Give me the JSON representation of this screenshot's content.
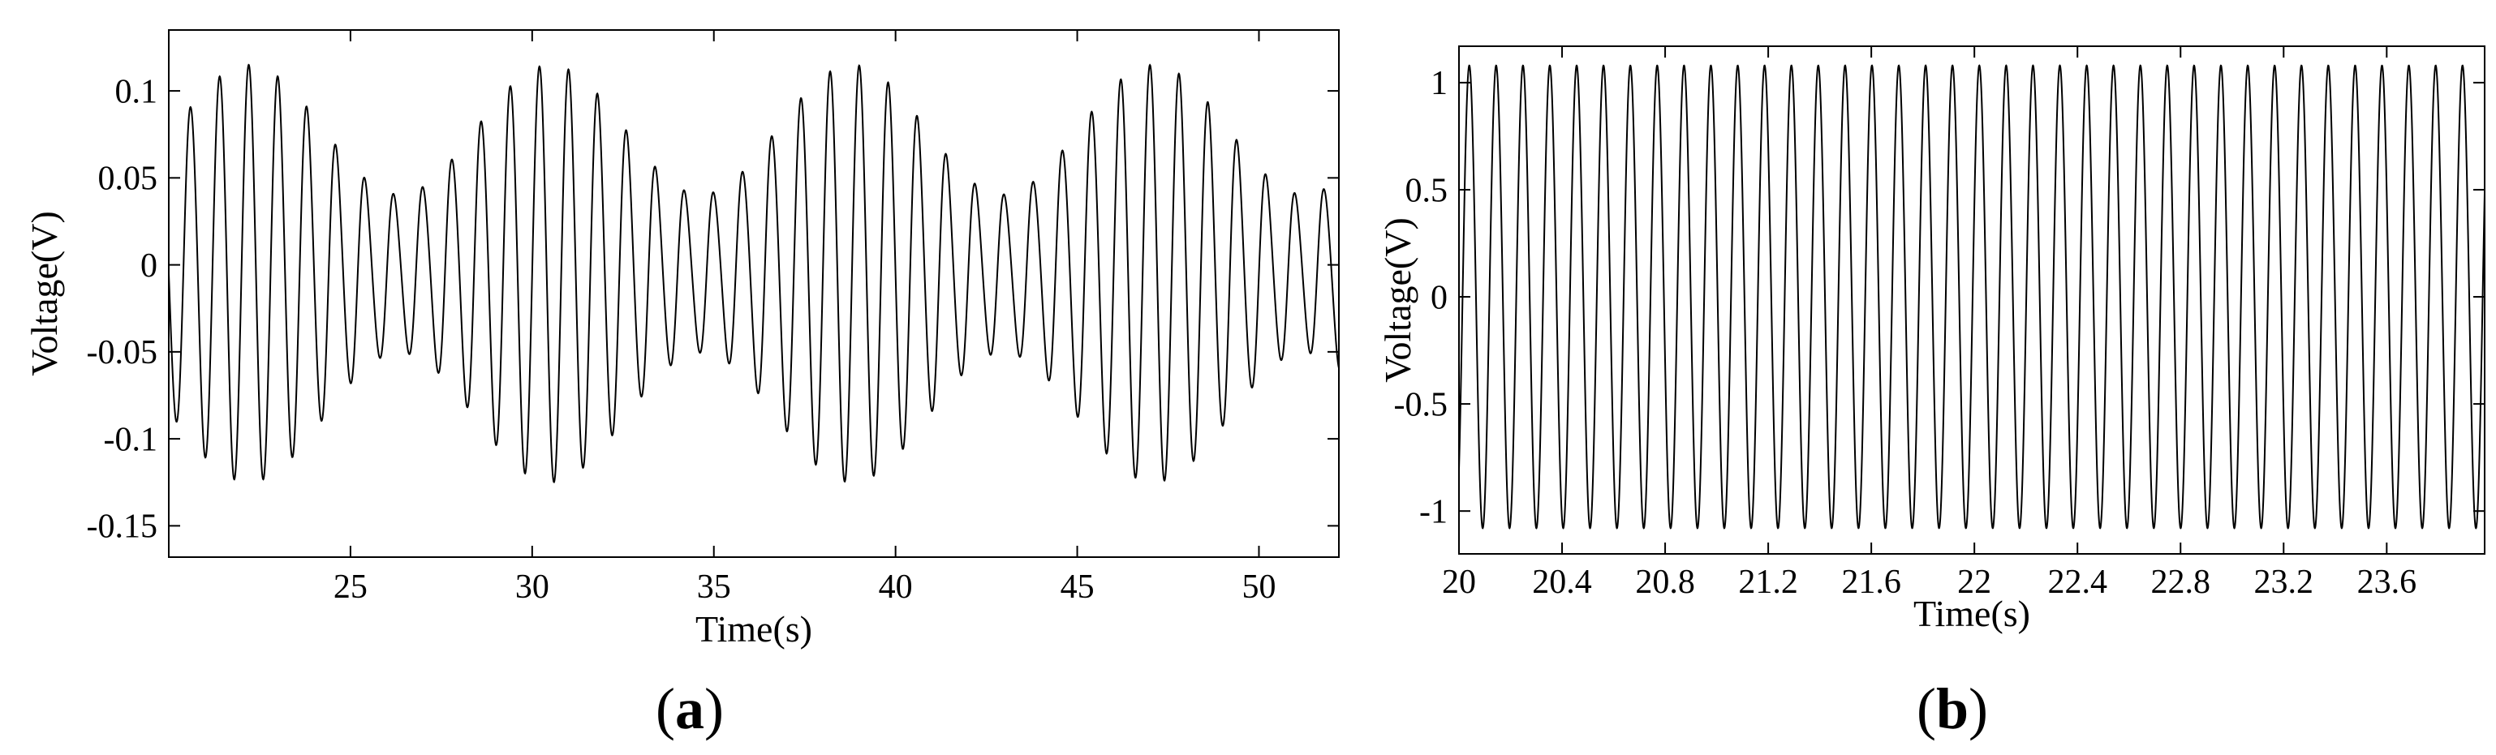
{
  "chart_data": [
    {
      "panel": "a",
      "type": "line",
      "caption": "(a)",
      "xlabel": "Time(s)",
      "ylabel": "Voltage(V)",
      "xlim": [
        20,
        52.2
      ],
      "ylim": [
        -0.168,
        0.135
      ],
      "xticks": [
        25,
        30,
        35,
        40,
        45,
        50
      ],
      "xtick_labels": [
        "25",
        "30",
        "35",
        "40",
        "45",
        "50"
      ],
      "yticks": [
        0.1,
        0.05,
        0,
        -0.05,
        -0.1,
        -0.15
      ],
      "ytick_labels": [
        "0.1",
        "0.05",
        "0",
        "-0.05",
        "-0.1",
        "-0.15"
      ],
      "grid": false,
      "line_color": "#000000",
      "series": [
        {
          "signal": "amplitude-modulated oscillation (beating)",
          "carrier_period_s": 0.8,
          "envelope_period_s": 8.3,
          "amplitude_max": 0.12,
          "amplitude_min": 0.045,
          "envelope_peaks_s": [
            22.2,
            30.5,
            38.8,
            47.1
          ],
          "offset": -0.005,
          "sample_values": [
            {
              "x": 22.0,
              "y": 0.113
            },
            {
              "x": 22.3,
              "y": -0.125
            },
            {
              "x": 30.4,
              "y": 0.112
            },
            {
              "x": 30.7,
              "y": -0.125
            },
            {
              "x": 38.5,
              "y": 0.108
            },
            {
              "x": 38.8,
              "y": -0.12
            },
            {
              "x": 47.0,
              "y": 0.108
            },
            {
              "x": 47.3,
              "y": -0.12
            },
            {
              "x": 25.3,
              "y": 0.053
            },
            {
              "x": 33.5,
              "y": 0.046
            }
          ]
        }
      ]
    },
    {
      "panel": "b",
      "type": "line",
      "caption": "(b)",
      "xlabel": "Time(s)",
      "ylabel": "Voltage(V)",
      "xlim": [
        20,
        23.98
      ],
      "ylim": [
        -1.2,
        1.17
      ],
      "xticks": [
        20,
        20.4,
        20.8,
        21.2,
        21.6,
        22,
        22.4,
        22.8,
        23.2,
        23.6
      ],
      "xtick_labels": [
        "20",
        "20.4",
        "20.8",
        "21.2",
        "21.6",
        "22",
        "22.4",
        "22.8",
        "23.2",
        "23.6"
      ],
      "yticks": [
        1,
        0.5,
        0,
        -0.5,
        -1
      ],
      "ytick_labels": [
        "1",
        "0.5",
        "0",
        "-0.5",
        "-1"
      ],
      "grid": false,
      "line_color": "#000000",
      "series": [
        {
          "signal": "sinusoid",
          "frequency_hz": 9.6,
          "period_s": 0.104,
          "amplitude": 1.08,
          "first_peak_s": 20.04,
          "sample_values": [
            {
              "x": 20.04,
              "y": 1.08
            },
            {
              "x": 20.09,
              "y": -1.08
            },
            {
              "x": 22.0,
              "y": 1.08
            },
            {
              "x": 23.96,
              "y": 1.06
            }
          ]
        }
      ]
    }
  ]
}
